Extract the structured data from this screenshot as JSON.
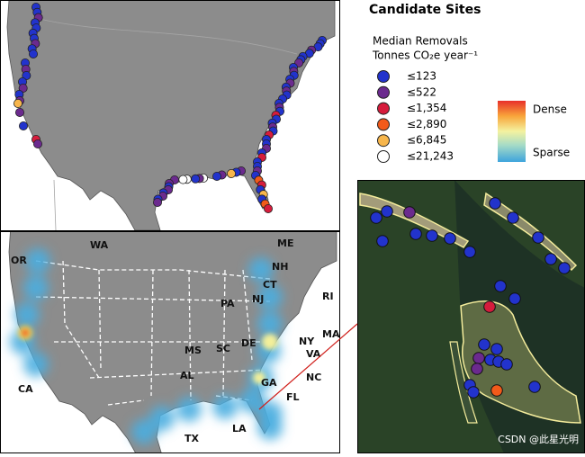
{
  "title": "Candidate Sites",
  "legend": {
    "heading": [
      "Median Removals",
      "Tonnes CO₂e year⁻¹"
    ],
    "items": [
      {
        "label": "≤123",
        "color": "#2233cc"
      },
      {
        "label": "≤522",
        "color": "#6b2a8e"
      },
      {
        "label": "≤1,354",
        "color": "#d61c3c"
      },
      {
        "label": "≤2,890",
        "color": "#f25a1a"
      },
      {
        "label": "≤6,845",
        "color": "#f7b64c"
      },
      {
        "label": "≤21,243",
        "color": "#ffffff"
      }
    ]
  },
  "density": {
    "high": "Dense",
    "low": "Sparse"
  },
  "states": [
    "WA",
    "OR",
    "CA",
    "ME",
    "NH",
    "CT",
    "NJ",
    "RI",
    "PA",
    "MA",
    "NY",
    "DE",
    "VA",
    "MS",
    "SC",
    "AL",
    "NC",
    "GA",
    "FL",
    "LA",
    "TX"
  ],
  "watermark": "CSDN @此星光明"
}
